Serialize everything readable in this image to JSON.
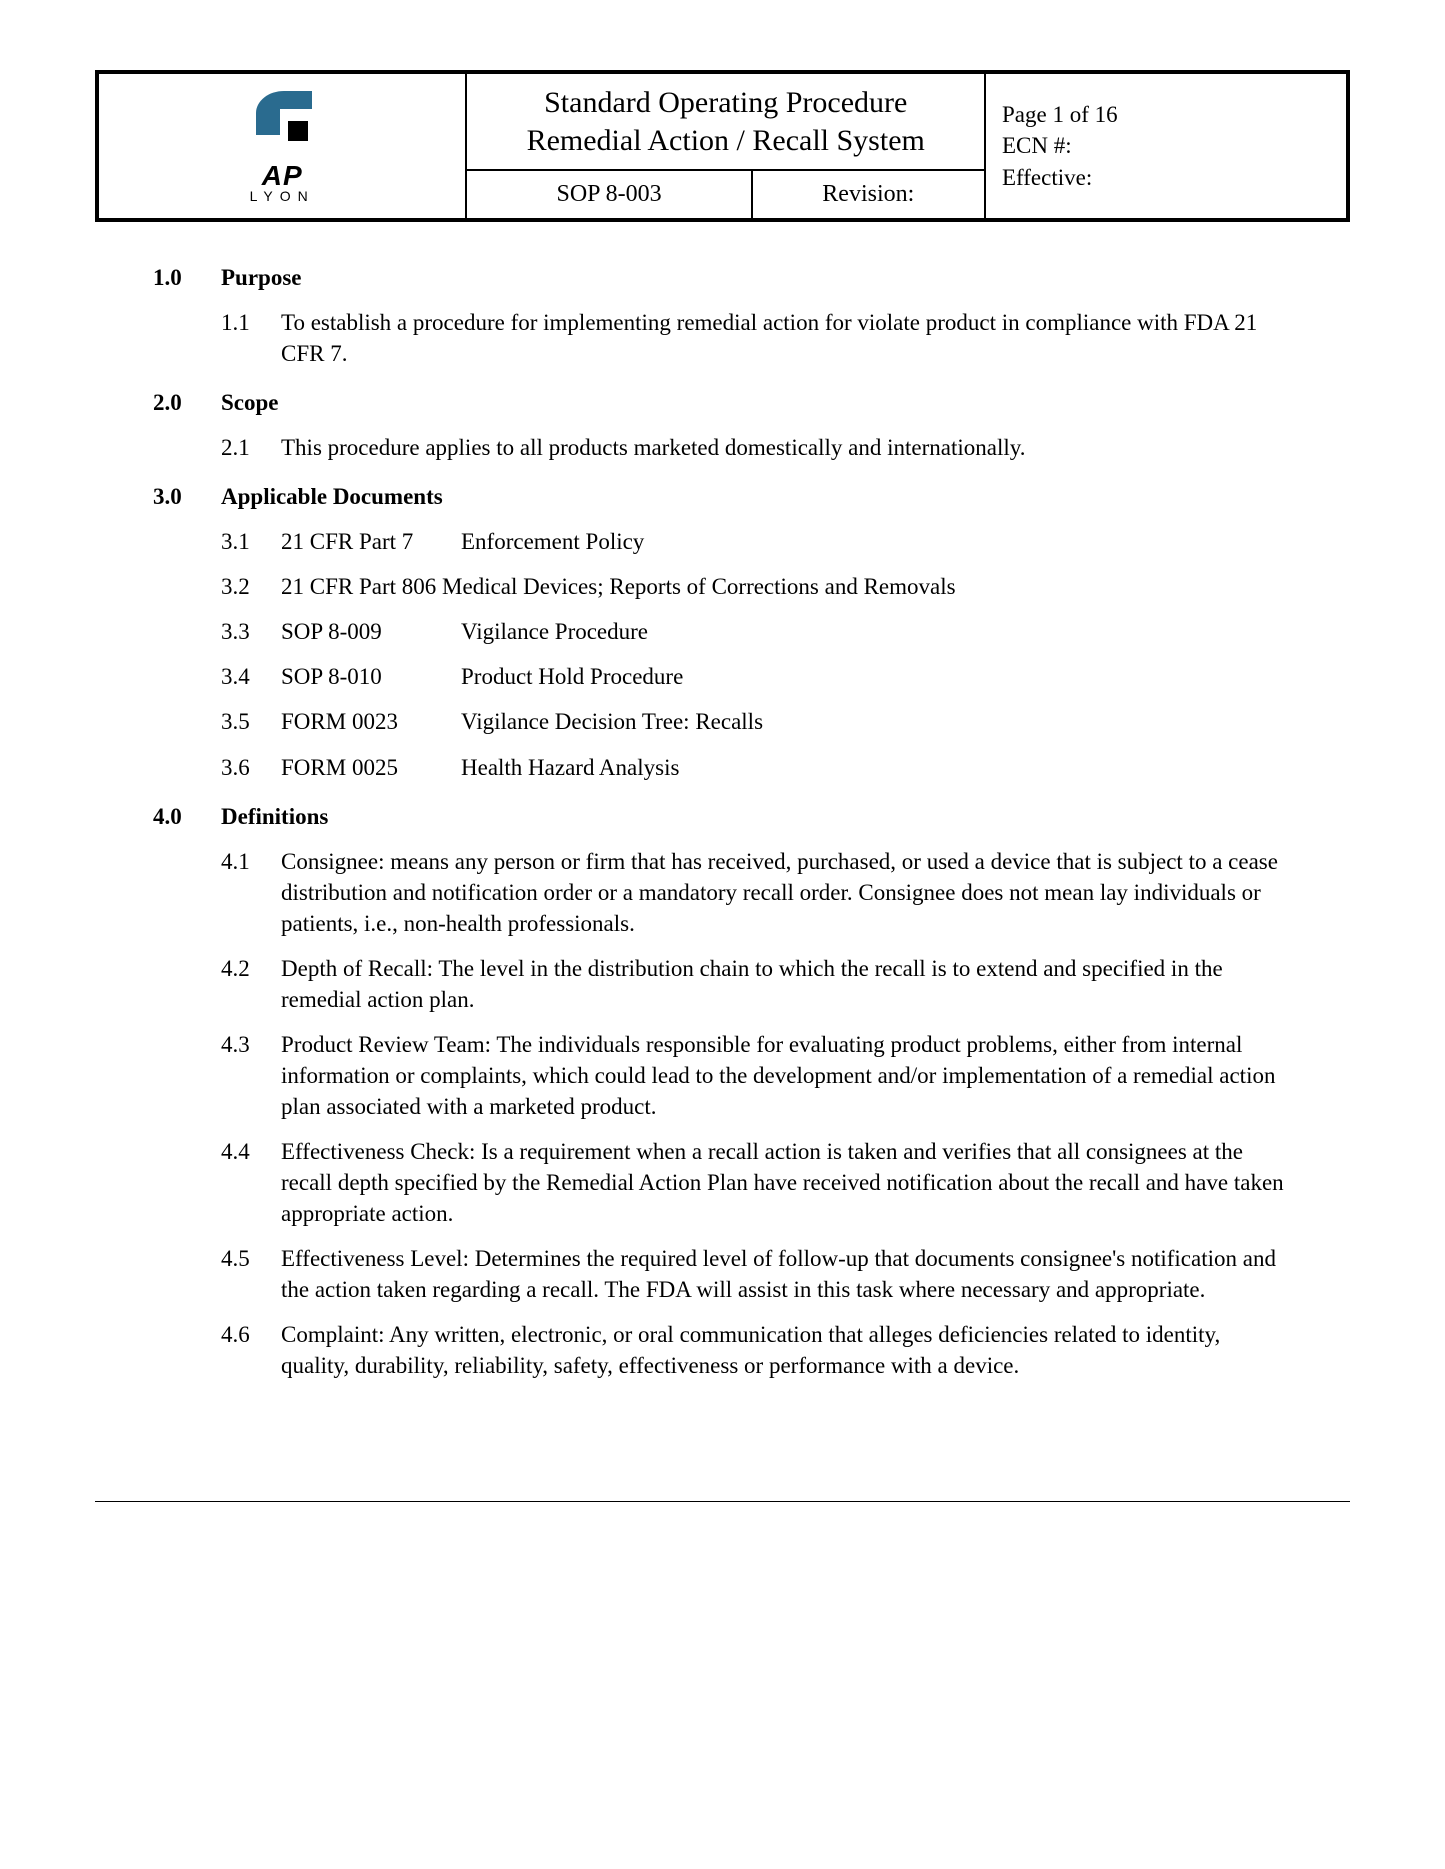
{
  "header": {
    "logo": {
      "text": "AP",
      "sub": "LYON"
    },
    "title_line1": "Standard Operating Procedure",
    "title_line2": "Remedial Action / Recall System",
    "sop": "SOP 8-003",
    "revision_label": "Revision:",
    "page_line": "Page  1 of 16",
    "ecn_line": "ECN #:",
    "effective_line": "Effective:"
  },
  "sections": {
    "purpose": {
      "num": "1.0",
      "title": "Purpose",
      "items": [
        {
          "num": "1.1",
          "text": "To establish a procedure for implementing remedial action for violate product in compliance with FDA 21 CFR 7."
        }
      ]
    },
    "scope": {
      "num": "2.0",
      "title": "Scope",
      "items": [
        {
          "num": "2.1",
          "text": "This procedure applies to all products marketed domestically and internationally."
        }
      ]
    },
    "docs": {
      "num": "3.0",
      "title": "Applicable Documents",
      "items": [
        {
          "num": "3.1",
          "ref": "21 CFR Part 7",
          "desc": "Enforcement Policy"
        },
        {
          "num": "3.2",
          "ref": "21 CFR Part 806",
          "desc": "Medical Devices; Reports of Corrections and Removals",
          "inline": true
        },
        {
          "num": "3.3",
          "ref": "SOP 8-009",
          "desc": "Vigilance Procedure"
        },
        {
          "num": "3.4",
          "ref": "SOP 8-010",
          "desc": "Product Hold Procedure"
        },
        {
          "num": "3.5",
          "ref": "FORM 0023",
          "desc": "Vigilance Decision Tree: Recalls"
        },
        {
          "num": "3.6",
          "ref": "FORM 0025",
          "desc": "Health Hazard Analysis"
        }
      ]
    },
    "defs": {
      "num": "4.0",
      "title": "Definitions",
      "items": [
        {
          "num": "4.1",
          "text": "Consignee: means any person or firm that has received, purchased, or used a device that is subject to a cease distribution and notification order or a mandatory recall order. Consignee does not mean lay individuals or patients, i.e., non-health professionals."
        },
        {
          "num": "4.2",
          "text": "Depth of Recall: The level in the distribution chain to which the recall is to extend and specified in the remedial action plan."
        },
        {
          "num": "4.3",
          "text": "Product Review Team: The individuals responsible for evaluating product problems, either from internal information or complaints, which could lead to the development and/or implementation of a remedial action plan associated with a marketed product."
        },
        {
          "num": "4.4",
          "text": "Effectiveness Check: Is a requirement when a recall action is taken and verifies that all consignees at the recall depth specified by the Remedial Action Plan have received notification about the recall and have taken appropriate action."
        },
        {
          "num": "4.5",
          "text": "Effectiveness Level: Determines the required level of follow-up that documents consignee's notification and the action taken regarding a recall. The FDA will assist in this task where necessary and appropriate."
        },
        {
          "num": "4.6",
          "text": "Complaint: Any written, electronic, or oral communication that alleges deficiencies related to identity, quality, durability, reliability, safety, effectiveness or performance with a device."
        }
      ]
    }
  },
  "colors": {
    "border": "#000000",
    "logo_blue": "#2a6b8f",
    "background": "#ffffff",
    "text": "#000000"
  },
  "typography": {
    "body_family": "Times New Roman",
    "body_size_pt": 17,
    "title_size_pt": 22,
    "logo_family": "Arial"
  }
}
